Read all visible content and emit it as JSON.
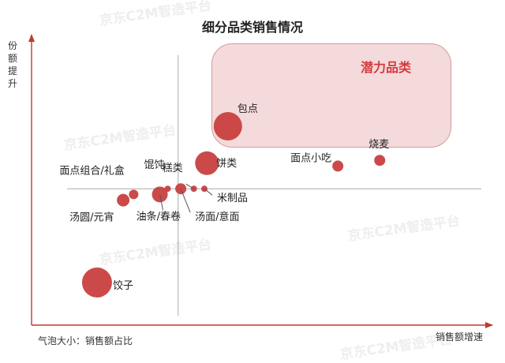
{
  "chart_data": {
    "type": "scatter",
    "title": "细分品类销售情况",
    "xlabel": "销售额增速",
    "ylabel": "份额提升",
    "note": "气泡大小：销售额占比",
    "highlight_label": "潜力品类",
    "watermark": "京东C2M智造平台",
    "colors": {
      "bubble": "#c8403f",
      "highlight_fill": "#f4dadb",
      "highlight_border": "#d59a9c",
      "highlight_text": "#d63a3e",
      "axis": "#c0392b"
    },
    "series": [
      {
        "points": [
          {
            "label": "包点",
            "x": 7.5,
            "y": 7.0,
            "size": 18
          },
          {
            "label": "饼类",
            "x": 6.7,
            "y": 5.7,
            "size": 15
          },
          {
            "label": "面点小吃",
            "x": 11.7,
            "y": 5.6,
            "size": 7
          },
          {
            "label": "烧麦",
            "x": 13.3,
            "y": 5.8,
            "size": 7
          },
          {
            "label": "糕类",
            "x": 6.2,
            "y": 4.8,
            "size": 4
          },
          {
            "label": "米制品",
            "x": 6.6,
            "y": 4.8,
            "size": 4
          },
          {
            "label": "汤面/意面",
            "x": 5.7,
            "y": 4.8,
            "size": 7
          },
          {
            "label": "馄饨",
            "x": 5.2,
            "y": 4.8,
            "size": 4
          },
          {
            "label": "油条/春卷",
            "x": 4.9,
            "y": 4.6,
            "size": 10
          },
          {
            "label": "面点组合/礼盒",
            "x": 3.9,
            "y": 4.6,
            "size": 6
          },
          {
            "label": "汤圆/元宵",
            "x": 3.5,
            "y": 4.4,
            "size": 8
          },
          {
            "label": "饺子",
            "x": 2.5,
            "y": 1.5,
            "size": 19
          }
        ]
      }
    ],
    "xlim": [
      0,
      17
    ],
    "ylim": [
      0,
      10
    ],
    "reference_lines": {
      "x": 5.6,
      "y": 4.8
    },
    "grid": false
  }
}
